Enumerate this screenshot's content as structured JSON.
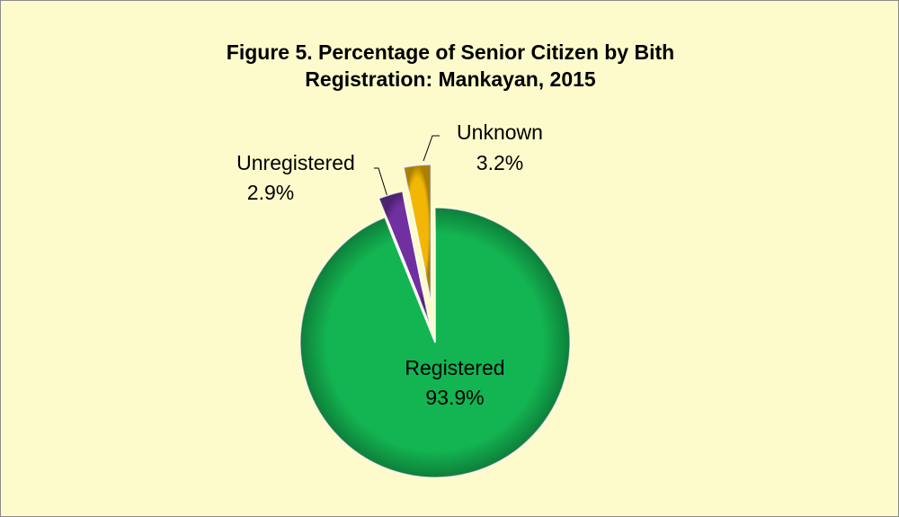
{
  "chart_data": {
    "type": "pie",
    "title": "Figure 5. Percentage of Senior Citizen by Bith Registration: Mankayan, 2015",
    "categories": [
      "Registered",
      "Unregistered",
      "Unknown"
    ],
    "values": [
      93.9,
      2.9,
      3.2
    ],
    "value_labels": [
      "93.9%",
      "2.9%",
      "3.2%"
    ],
    "colors": [
      "#13b552",
      "#7030a0",
      "#f2b705"
    ]
  }
}
